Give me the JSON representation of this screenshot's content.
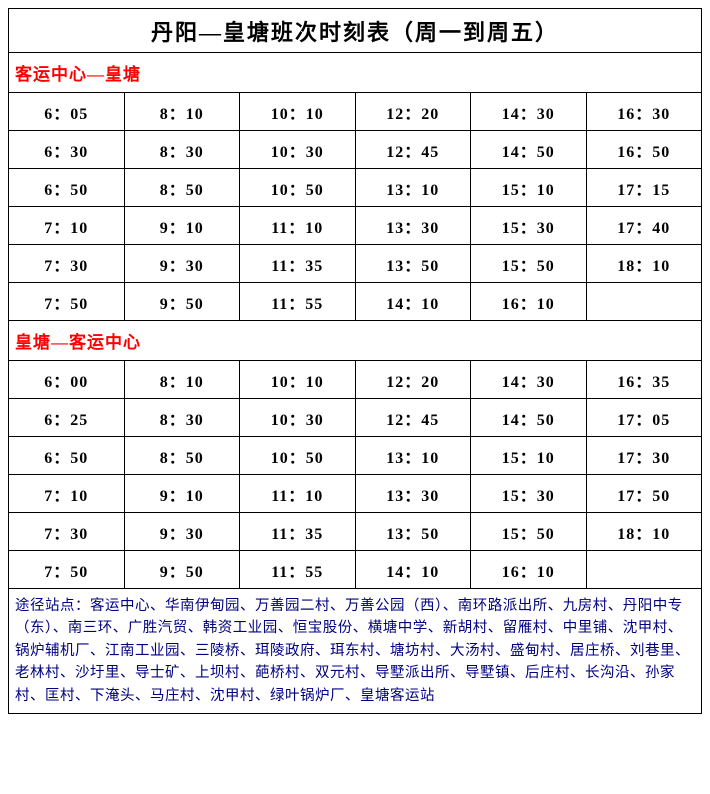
{
  "title": "丹阳—皇塘班次时刻表（周一到周五）",
  "colors": {
    "section_header": "#ff0000",
    "footer_text": "#000080",
    "border": "#000000",
    "background": "#ffffff"
  },
  "section1": {
    "header": "客运中心—皇塘",
    "rows": [
      [
        "6：05",
        "8：10",
        "10：10",
        "12：20",
        "14：30",
        "16：30"
      ],
      [
        "6：30",
        "8：30",
        "10：30",
        "12：45",
        "14：50",
        "16：50"
      ],
      [
        "6：50",
        "8：50",
        "10：50",
        "13：10",
        "15：10",
        "17：15"
      ],
      [
        "7：10",
        "9：10",
        "11：10",
        "13：30",
        "15：30",
        "17：40"
      ],
      [
        "7：30",
        "9：30",
        "11：35",
        "13：50",
        "15：50",
        "18：10"
      ],
      [
        "7：50",
        "9：50",
        "11：55",
        "14：10",
        "16：10",
        ""
      ]
    ]
  },
  "section2": {
    "header": "皇塘—客运中心",
    "rows": [
      [
        "6：00",
        "8：10",
        "10：10",
        "12：20",
        "14：30",
        "16：35"
      ],
      [
        "6：25",
        "8：30",
        "10：30",
        "12：45",
        "14：50",
        "17：05"
      ],
      [
        "6：50",
        "8：50",
        "10：50",
        "13：10",
        "15：10",
        "17：30"
      ],
      [
        "7：10",
        "9：10",
        "11：10",
        "13：30",
        "15：30",
        "17：50"
      ],
      [
        "7：30",
        "9：30",
        "11：35",
        "13：50",
        "15：50",
        "18：10"
      ],
      [
        "7：50",
        "9：50",
        "11：55",
        "14：10",
        "16：10",
        ""
      ]
    ]
  },
  "footer": "途径站点：客运中心、华南伊甸园、万善园二村、万善公园（西）、南环路派出所、九房村、丹阳中专（东）、南三环、广胜汽贸、韩资工业园、恒宝股份、横塘中学、新胡村、留雁村、中里铺、沈甲村、锅炉辅机厂、江南工业园、三陵桥、珥陵政府、珥东村、塘坊村、大汤村、盛甸村、居庄桥、刘巷里、老林村、沙圩里、导士矿、上坝村、葩桥村、双元村、导墅派出所、导墅镇、后庄村、长沟沿、孙家村、匡村、下淹头、马庄村、沈甲村、绿叶锅炉厂、皇塘客运站"
}
